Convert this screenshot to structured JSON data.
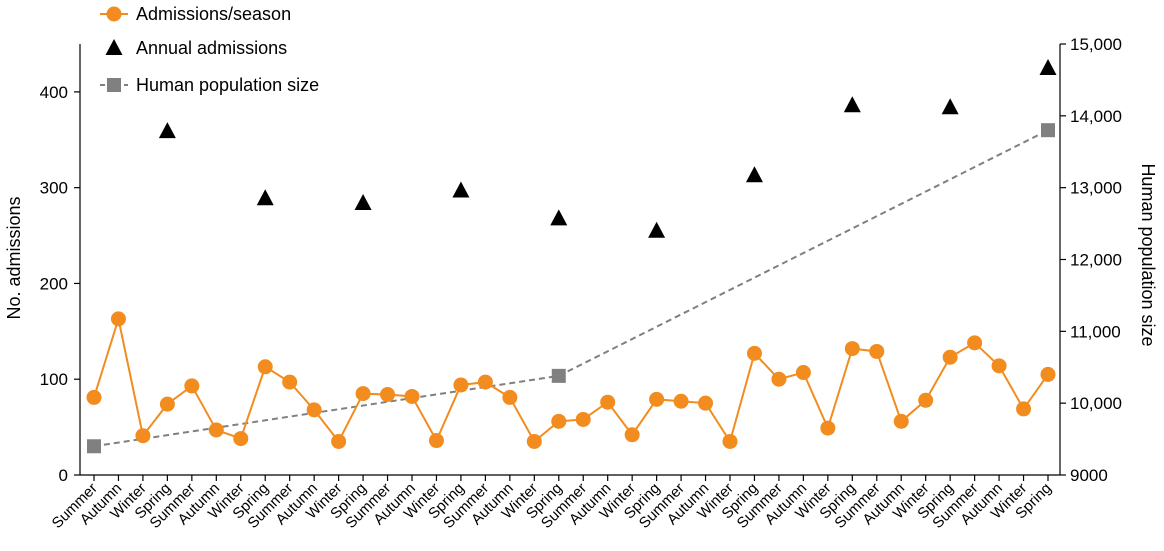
{
  "chart_data": {
    "type": "line",
    "title": "",
    "colors": {
      "seasonal": "#F28C1E",
      "annual": "#000000",
      "population": "#808080"
    },
    "categories": [
      "Summer",
      "Autumn",
      "Winter",
      "Spring",
      "Summer",
      "Autumn",
      "Winter",
      "Spring",
      "Summer",
      "Autumn",
      "Winter",
      "Spring",
      "Summer",
      "Autumn",
      "Winter",
      "Spring",
      "Summer",
      "Autumn",
      "Winter",
      "Spring",
      "Summer",
      "Autumn",
      "Winter",
      "Spring",
      "Summer",
      "Autumn",
      "Winter",
      "Spring",
      "Summer",
      "Autumn",
      "Winter",
      "Spring",
      "Summer",
      "Autumn",
      "Winter",
      "Spring",
      "Summer",
      "Autumn",
      "Winter",
      "Spring"
    ],
    "y_left": {
      "label": "No. admissions",
      "ticks": [
        0,
        100,
        200,
        300,
        400
      ],
      "range": [
        0,
        450
      ]
    },
    "y_right": {
      "label": "Human population size",
      "ticks": [
        9000,
        10000,
        11000,
        12000,
        13000,
        14000,
        15000
      ],
      "tick_labels": [
        "9000",
        "10,000",
        "11,000",
        "12,000",
        "13,000",
        "14,000",
        "15,000"
      ],
      "range": [
        9000,
        15000
      ]
    },
    "legend": {
      "placement": "top-left",
      "items": [
        {
          "label": "Admissions/season",
          "marker": "circle",
          "color": "#F28C1E"
        },
        {
          "label": "Annual admissions",
          "marker": "triangle",
          "color": "#000000"
        },
        {
          "label": "Human population size",
          "marker": "square",
          "color": "#808080"
        }
      ]
    },
    "series": [
      {
        "name": "Admissions/season",
        "axis": "left",
        "marker": "circle",
        "values": [
          81,
          163,
          41,
          74,
          93,
          47,
          38,
          113,
          97,
          68,
          35,
          85,
          84,
          82,
          36,
          94,
          97,
          81,
          35,
          56,
          58,
          76,
          42,
          79,
          77,
          75,
          35,
          127,
          100,
          107,
          49,
          132,
          129,
          56,
          78,
          123,
          138,
          114,
          69,
          105
        ]
      },
      {
        "name": "Annual admissions",
        "axis": "left",
        "marker": "triangle",
        "points": [
          {
            "index": 3,
            "value": 359
          },
          {
            "index": 7,
            "value": 289
          },
          {
            "index": 11,
            "value": 284
          },
          {
            "index": 15,
            "value": 297
          },
          {
            "index": 19,
            "value": 268
          },
          {
            "index": 23,
            "value": 255
          },
          {
            "index": 27,
            "value": 313
          },
          {
            "index": 31,
            "value": 386
          },
          {
            "index": 35,
            "value": 384
          },
          {
            "index": 39,
            "value": 425
          }
        ]
      },
      {
        "name": "Human population size",
        "axis": "right",
        "marker": "square",
        "line": "dashed",
        "points": [
          {
            "index": 0,
            "value": 9400
          },
          {
            "index": 19,
            "value": 10380
          },
          {
            "index": 39,
            "value": 13800
          }
        ]
      }
    ]
  }
}
